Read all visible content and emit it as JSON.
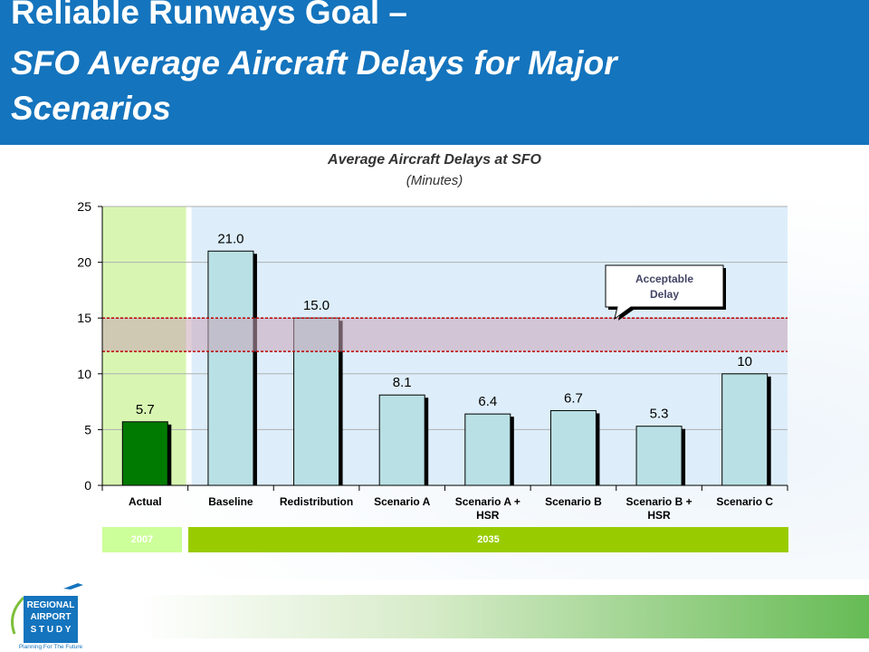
{
  "header": {
    "title_line1": "Reliable Runways Goal –",
    "title_line2": "SFO Average Aircraft Delays for Major",
    "title_line3": "Scenarios"
  },
  "chart_data": {
    "type": "bar",
    "title": "Average Aircraft Delays at SFO",
    "subtitle": "(Minutes)",
    "categories": [
      "Actual",
      "Baseline",
      "Redistribution",
      "Scenario A",
      "Scenario A + HSR",
      "Scenario B",
      "Scenario B + HSR",
      "Scenario C"
    ],
    "category_lines": [
      [
        "Actual"
      ],
      [
        "Baseline"
      ],
      [
        "Redistribution"
      ],
      [
        "Scenario A"
      ],
      [
        "Scenario A +",
        "HSR"
      ],
      [
        "Scenario B"
      ],
      [
        "Scenario B +",
        "HSR"
      ],
      [
        "Scenario C"
      ]
    ],
    "values": [
      5.7,
      21.0,
      15.0,
      8.1,
      6.4,
      6.7,
      5.3,
      10
    ],
    "value_labels": [
      "5.7",
      "21.0",
      "15.0",
      "8.1",
      "6.4",
      "6.7",
      "5.3",
      "10"
    ],
    "bar_colors": [
      "#007a00",
      "#b9e0e4",
      "#b9e0e4",
      "#b9e0e4",
      "#b9e0e4",
      "#b9e0e4",
      "#b9e0e4",
      "#b9e0e4"
    ],
    "ylim": [
      0,
      25
    ],
    "yticks": [
      0,
      5,
      10,
      15,
      20,
      25
    ],
    "acceptable_delay": {
      "range": [
        12,
        15
      ],
      "label_line1": "Acceptable",
      "label_line2": "Delay"
    },
    "periods": [
      {
        "label": "2007",
        "categories": [
          "Actual"
        ],
        "color": "#ccff99"
      },
      {
        "label": "2035",
        "categories": [
          "Baseline",
          "Redistribution",
          "Scenario A",
          "Scenario A + HSR",
          "Scenario B",
          "Scenario B + HSR",
          "Scenario C"
        ],
        "color": "#99cc00"
      }
    ]
  },
  "logo": {
    "line1": "REGIONAL",
    "line2": "AIRPORT",
    "line3": "S T U D Y",
    "tagline": "Planning For The Future",
    "color": "#1474bd"
  }
}
